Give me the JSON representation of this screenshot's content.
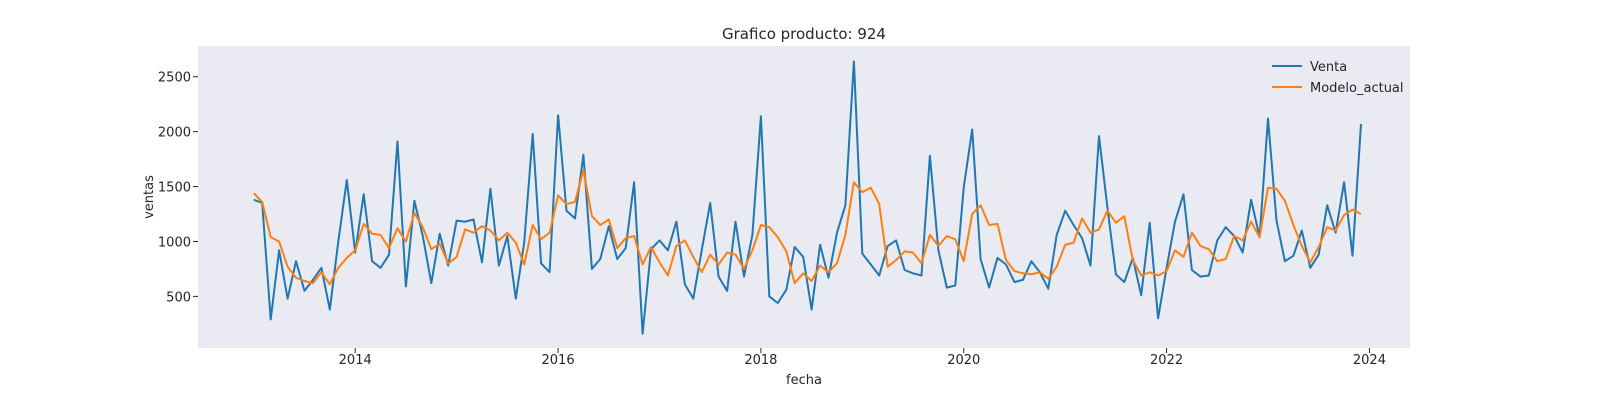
{
  "chart_data": {
    "type": "line",
    "title": "Grafico producto: 924",
    "xlabel": "fecha",
    "ylabel": "ventas",
    "x_start": "2013-01",
    "x_ticks": [
      "2014",
      "2016",
      "2018",
      "2020",
      "2022",
      "2024"
    ],
    "y_ticks": [
      "500",
      "1000",
      "1500",
      "2000",
      "2500"
    ],
    "xlim": [
      2012.45,
      2024.4
    ],
    "ylim": [
      30,
      2780
    ],
    "grid": false,
    "legend": "top-right",
    "background": "#eaeaf2",
    "series": [
      {
        "name": "Venta",
        "color": "#1f77b4",
        "values": [
          1380,
          1350,
          290,
          920,
          480,
          820,
          550,
          650,
          760,
          380,
          1000,
          1560,
          900,
          1430,
          820,
          760,
          880,
          1910,
          590,
          1370,
          1050,
          620,
          1070,
          780,
          1190,
          1180,
          1200,
          810,
          1480,
          780,
          1050,
          480,
          990,
          1980,
          800,
          720,
          2150,
          1280,
          1210,
          1790,
          750,
          840,
          1140,
          840,
          940,
          1540,
          160,
          930,
          1010,
          920,
          1180,
          610,
          480,
          920,
          1350,
          680,
          550,
          1180,
          680,
          1060,
          2140,
          500,
          440,
          560,
          950,
          860,
          380,
          970,
          670,
          1080,
          1330,
          2640,
          890,
          790,
          690,
          960,
          1010,
          740,
          710,
          690,
          1780,
          920,
          580,
          600,
          1490,
          2020,
          840,
          580,
          850,
          790,
          630,
          650,
          820,
          720,
          570,
          1060,
          1280,
          1150,
          1030,
          780,
          1960,
          1310,
          700,
          630,
          850,
          510,
          1170,
          300,
          760,
          1180,
          1430,
          740,
          680,
          690,
          1010,
          1130,
          1050,
          900,
          1380,
          1040,
          2120,
          1190,
          820,
          870,
          1100,
          760,
          880,
          1330,
          1080,
          1540,
          870,
          2070
        ]
      },
      {
        "name": "Modelo_actual",
        "color": "#ff7f0e",
        "values": [
          1440,
          1360,
          1040,
          1000,
          770,
          670,
          640,
          620,
          720,
          610,
          760,
          850,
          920,
          1160,
          1070,
          1060,
          940,
          1120,
          1000,
          1260,
          1130,
          930,
          980,
          800,
          860,
          1110,
          1080,
          1140,
          1100,
          1010,
          1080,
          990,
          790,
          1150,
          1020,
          1080,
          1420,
          1340,
          1360,
          1650,
          1230,
          1150,
          1200,
          940,
          1030,
          1050,
          790,
          950,
          810,
          690,
          960,
          1010,
          860,
          720,
          880,
          790,
          900,
          880,
          750,
          920,
          1150,
          1130,
          1040,
          910,
          620,
          710,
          640,
          780,
          720,
          800,
          1060,
          1540,
          1450,
          1490,
          1340,
          770,
          830,
          910,
          900,
          800,
          1060,
          960,
          1050,
          1020,
          820,
          1250,
          1330,
          1150,
          1160,
          830,
          730,
          710,
          700,
          720,
          660,
          770,
          970,
          990,
          1210,
          1080,
          1110,
          1280,
          1170,
          1230,
          830,
          690,
          720,
          690,
          730,
          920,
          860,
          1080,
          960,
          930,
          820,
          840,
          1050,
          1010,
          1180,
          1040,
          1490,
          1480,
          1370,
          1150,
          960,
          810,
          950,
          1130,
          1100,
          1240,
          1290,
          1250
        ]
      }
    ]
  }
}
